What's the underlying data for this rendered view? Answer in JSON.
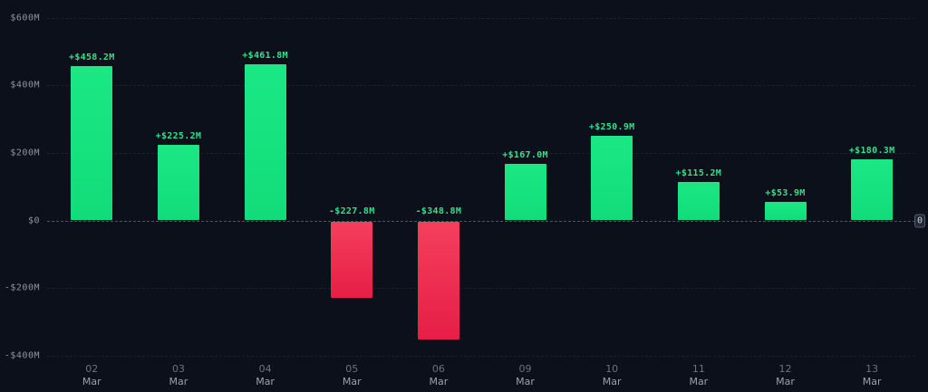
{
  "colors": {
    "background": "#0c101a",
    "positive_bar": "#15e07d",
    "negative_bar": "#ee2449",
    "value_label": "#2fe28c",
    "y_axis_text": "#8d94a2",
    "x_axis_day_text": "#6b7280",
    "x_axis_month_text": "#9aa0ad",
    "gridline": "#1b2130",
    "zero_line": "#4d5565"
  },
  "chart_data": {
    "type": "bar",
    "title": "",
    "xlabel": "",
    "ylabel": "",
    "unit": "millions USD",
    "ylim": [
      -400,
      600
    ],
    "grid": "dashed horizontal",
    "legend": "none",
    "y_ticks": [
      {
        "label": "$600M",
        "value": 600
      },
      {
        "label": "$400M",
        "value": 400
      },
      {
        "label": "$200M",
        "value": 200
      },
      {
        "label": "$0",
        "value": 0
      },
      {
        "label": "-$200M",
        "value": -200
      },
      {
        "label": "-$400M",
        "value": -400
      }
    ],
    "categories": [
      {
        "day": "02",
        "month": "Mar"
      },
      {
        "day": "03",
        "month": "Mar"
      },
      {
        "day": "04",
        "month": "Mar"
      },
      {
        "day": "05",
        "month": "Mar"
      },
      {
        "day": "06",
        "month": "Mar"
      },
      {
        "day": "09",
        "month": "Mar"
      },
      {
        "day": "10",
        "month": "Mar"
      },
      {
        "day": "11",
        "month": "Mar"
      },
      {
        "day": "12",
        "month": "Mar"
      },
      {
        "day": "13",
        "month": "Mar"
      }
    ],
    "values": [
      458.2,
      225.2,
      461.8,
      -227.8,
      -348.8,
      167.0,
      250.9,
      115.2,
      53.9,
      180.3
    ],
    "bar_labels": [
      "+$458.2M",
      "+$225.2M",
      "+$461.8M",
      "-$227.8M",
      "-$348.8M",
      "+$167.0M",
      "+$250.9M",
      "+$115.2M",
      "+$53.9M",
      "+$180.3M"
    ],
    "zero_marker": "0"
  }
}
